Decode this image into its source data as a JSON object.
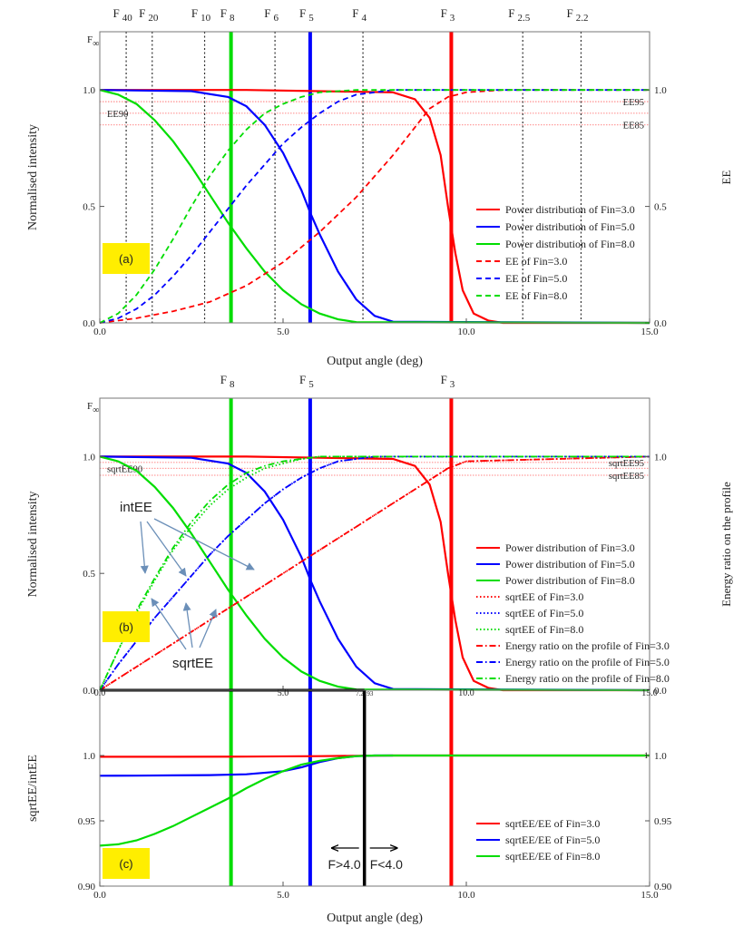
{
  "chart_data": [
    {
      "id": "a",
      "type": "line",
      "panel_label": "(a)",
      "xlabel": "Output angle (deg)",
      "ylabel": "Normalised intensity",
      "y2label": "EE",
      "xlim": [
        0,
        15
      ],
      "ylim": [
        0,
        1.25
      ],
      "xticks": [
        0,
        5,
        10,
        15
      ],
      "xtick_labels": [
        "0.0",
        "5.0",
        "10.0",
        "15.0"
      ],
      "yticks": [
        0,
        0.5,
        1.0
      ],
      "ytick_labels": [
        "0.0",
        "0.5",
        "1.0"
      ],
      "y2ticks": [
        0,
        0.5,
        1.0
      ],
      "y2tick_labels": [
        "0.0",
        "0.5",
        "1.0"
      ],
      "f_marks": [
        {
          "label": "F",
          "sub": "40",
          "x": 0.72,
          "style": "dotted"
        },
        {
          "label": "F",
          "sub": "20",
          "x": 1.43,
          "style": "dotted"
        },
        {
          "label": "F",
          "sub": "10",
          "x": 2.86,
          "style": "dotted"
        },
        {
          "label": "F",
          "sub": "8",
          "x": 3.58,
          "style": "green"
        },
        {
          "label": "F",
          "sub": "6",
          "x": 4.78,
          "style": "dotted"
        },
        {
          "label": "F",
          "sub": "5",
          "x": 5.74,
          "style": "blue"
        },
        {
          "label": "F",
          "sub": "4",
          "x": 7.18,
          "style": "dotted"
        },
        {
          "label": "F",
          "sub": "3",
          "x": 9.59,
          "style": "red"
        },
        {
          "label": "F",
          "sub": "2.5",
          "x": 11.54,
          "style": "dotted"
        },
        {
          "label": "F",
          "sub": "2.2",
          "x": 13.13,
          "style": "dotted"
        }
      ],
      "f_inf_label": "F",
      "f_inf_sub": "∞",
      "ref_lines": [
        {
          "label": "EE95",
          "y": 0.95,
          "side": "right"
        },
        {
          "label": "EE90",
          "y": 0.9,
          "side": "left"
        },
        {
          "label": "EE85",
          "y": 0.85,
          "side": "right"
        }
      ],
      "series": [
        {
          "name": "Power distribution of Fin=3.0",
          "color": "#ff0000",
          "dash": "solid",
          "x": [
            0,
            4,
            8,
            8.6,
            9.0,
            9.3,
            9.5,
            9.7,
            9.9,
            10.2,
            10.6,
            11,
            15
          ],
          "y": [
            1.0,
            1.0,
            0.99,
            0.96,
            0.88,
            0.72,
            0.5,
            0.3,
            0.14,
            0.04,
            0.01,
            0,
            0
          ]
        },
        {
          "name": "Power distribution of Fin=5.0",
          "color": "#0000ff",
          "dash": "solid",
          "x": [
            0,
            2.5,
            3.5,
            4.0,
            4.5,
            5.0,
            5.5,
            5.75,
            6.0,
            6.5,
            7.0,
            7.5,
            8.0,
            15
          ],
          "y": [
            1.0,
            0.995,
            0.97,
            0.93,
            0.85,
            0.73,
            0.57,
            0.47,
            0.38,
            0.22,
            0.1,
            0.03,
            0.005,
            0
          ]
        },
        {
          "name": "Power distribution of Fin=8.0",
          "color": "#00dd00",
          "dash": "solid",
          "x": [
            0,
            0.5,
            1.0,
            1.5,
            2.0,
            2.5,
            3.0,
            3.5,
            4.0,
            4.5,
            5.0,
            5.5,
            6.0,
            6.5,
            7.0,
            15
          ],
          "y": [
            1.0,
            0.98,
            0.94,
            0.87,
            0.78,
            0.67,
            0.55,
            0.43,
            0.32,
            0.22,
            0.14,
            0.08,
            0.04,
            0.015,
            0.003,
            0
          ]
        },
        {
          "name": "EE of Fin=3.0",
          "color": "#ff0000",
          "dash": "dashed",
          "x": [
            0,
            1,
            2,
            3,
            4,
            5,
            6,
            7,
            8,
            9,
            9.5,
            10,
            11,
            15
          ],
          "y": [
            0,
            0.02,
            0.05,
            0.09,
            0.16,
            0.26,
            0.39,
            0.54,
            0.72,
            0.92,
            0.97,
            0.99,
            1.0,
            1.0
          ]
        },
        {
          "name": "EE of Fin=5.0",
          "color": "#0000ff",
          "dash": "dashed",
          "x": [
            0,
            0.5,
            1,
            1.5,
            2,
            2.5,
            3,
            3.5,
            4,
            4.5,
            5,
            5.5,
            6,
            6.5,
            7,
            7.5,
            8,
            15
          ],
          "y": [
            0,
            0.02,
            0.06,
            0.12,
            0.2,
            0.29,
            0.39,
            0.49,
            0.59,
            0.68,
            0.77,
            0.84,
            0.9,
            0.95,
            0.98,
            0.99,
            1.0,
            1.0
          ]
        },
        {
          "name": "EE of Fin=8.0",
          "color": "#00dd00",
          "dash": "dashed",
          "x": [
            0,
            0.5,
            1,
            1.5,
            2,
            2.5,
            3,
            3.5,
            4,
            4.5,
            5,
            5.5,
            6,
            7,
            15
          ],
          "y": [
            0,
            0.04,
            0.12,
            0.23,
            0.36,
            0.5,
            0.63,
            0.74,
            0.83,
            0.9,
            0.94,
            0.97,
            0.99,
            1.0,
            1.0
          ]
        }
      ],
      "legend": {
        "placement": "lower-right"
      }
    },
    {
      "id": "b",
      "type": "line",
      "panel_label": "(b)",
      "xlabel": "",
      "ylabel": "Normalised intensity",
      "y2label": "Energy ratio on the profile",
      "xlim": [
        0,
        15
      ],
      "ylim": [
        0,
        1.25
      ],
      "xticks": [
        0,
        5,
        15
      ],
      "xtick_labels": [
        "0.0",
        "5.0",
        "15.0"
      ],
      "yticks": [
        0,
        0.5,
        1.0
      ],
      "ytick_labels": [
        "0.0",
        "0.5",
        "1.0"
      ],
      "y2ticks": [
        0,
        1.0
      ],
      "y2tick_labels": [
        "0.0",
        "1.0"
      ],
      "f_marks": [
        {
          "label": "F",
          "sub": "8",
          "x": 3.58,
          "style": "green"
        },
        {
          "label": "F",
          "sub": "5",
          "x": 5.74,
          "style": "blue"
        },
        {
          "label": "F",
          "sub": "3",
          "x": 9.59,
          "style": "red"
        }
      ],
      "f_inf_label": "F",
      "f_inf_sub": "∞",
      "ref_lines": [
        {
          "label": "sqrtEE95",
          "y": 0.975,
          "side": "right"
        },
        {
          "label": "sqrtEE90",
          "y": 0.95,
          "side": "left"
        },
        {
          "label": "sqrtEE85",
          "y": 0.92,
          "side": "right"
        }
      ],
      "annotations": [
        "intEE",
        "sqrtEE"
      ],
      "series": [
        {
          "name": "Power distribution of Fin=3.0",
          "color": "#ff0000",
          "dash": "solid",
          "x": [
            0,
            4,
            8,
            8.6,
            9.0,
            9.3,
            9.5,
            9.7,
            9.9,
            10.2,
            10.6,
            11,
            15
          ],
          "y": [
            1.0,
            1.0,
            0.99,
            0.96,
            0.88,
            0.72,
            0.5,
            0.3,
            0.14,
            0.04,
            0.01,
            0,
            0
          ]
        },
        {
          "name": "Power distribution of Fin=5.0",
          "color": "#0000ff",
          "dash": "solid",
          "x": [
            0,
            2.5,
            3.5,
            4.0,
            4.5,
            5.0,
            5.5,
            5.75,
            6.0,
            6.5,
            7.0,
            7.5,
            8.0,
            15
          ],
          "y": [
            1.0,
            0.995,
            0.97,
            0.93,
            0.85,
            0.73,
            0.57,
            0.47,
            0.38,
            0.22,
            0.1,
            0.03,
            0.005,
            0
          ]
        },
        {
          "name": "Power distribution of Fin=8.0",
          "color": "#00dd00",
          "dash": "solid",
          "x": [
            0,
            0.5,
            1.0,
            1.5,
            2.0,
            2.5,
            3.0,
            3.5,
            4.0,
            4.5,
            5.0,
            5.5,
            6.0,
            6.5,
            7.0,
            15
          ],
          "y": [
            1.0,
            0.98,
            0.94,
            0.87,
            0.78,
            0.67,
            0.55,
            0.43,
            0.32,
            0.22,
            0.14,
            0.08,
            0.04,
            0.015,
            0.003,
            0
          ]
        },
        {
          "name": "sqrtEE of Fin=3.0",
          "color": "#ff0000",
          "dash": "dotted",
          "x": [
            0,
            1,
            2,
            3,
            4,
            5,
            6,
            7,
            8,
            9,
            9.5,
            10,
            15
          ],
          "y": [
            0,
            0.1,
            0.2,
            0.3,
            0.4,
            0.5,
            0.6,
            0.7,
            0.8,
            0.9,
            0.95,
            0.98,
            1.0
          ]
        },
        {
          "name": "sqrtEE of Fin=5.0",
          "color": "#0000ff",
          "dash": "dotted",
          "x": [
            0,
            0.5,
            1,
            1.5,
            2,
            2.5,
            3,
            3.5,
            4,
            4.5,
            5,
            5.5,
            6,
            6.5,
            7,
            7.5,
            15
          ],
          "y": [
            0,
            0.11,
            0.21,
            0.31,
            0.4,
            0.49,
            0.58,
            0.66,
            0.73,
            0.8,
            0.86,
            0.91,
            0.95,
            0.98,
            0.99,
            1.0,
            1.0
          ]
        },
        {
          "name": "sqrtEE of Fin=8.0",
          "color": "#00dd00",
          "dash": "dotted",
          "x": [
            0,
            0.5,
            1,
            1.5,
            2,
            2.5,
            3,
            3.5,
            4,
            4.5,
            5,
            5.5,
            6,
            15
          ],
          "y": [
            0,
            0.17,
            0.33,
            0.47,
            0.6,
            0.7,
            0.79,
            0.86,
            0.91,
            0.95,
            0.97,
            0.99,
            1.0,
            1.0
          ]
        },
        {
          "name": "Energy ratio on the profile of Fin=3.0",
          "color": "#ff0000",
          "dash": "dashdot",
          "x": [
            0,
            1,
            2,
            3,
            4,
            5,
            6,
            7,
            8,
            9,
            9.5,
            10,
            15
          ],
          "y": [
            0,
            0.1,
            0.2,
            0.3,
            0.4,
            0.5,
            0.6,
            0.7,
            0.8,
            0.9,
            0.95,
            0.98,
            1.0
          ]
        },
        {
          "name": "Energy ratio on the profile of Fin=5.0",
          "color": "#0000ff",
          "dash": "dashdot",
          "x": [
            0,
            0.5,
            1,
            1.5,
            2,
            2.5,
            3,
            3.5,
            4,
            4.5,
            5,
            5.5,
            6,
            6.5,
            7,
            7.5,
            15
          ],
          "y": [
            0,
            0.11,
            0.21,
            0.31,
            0.4,
            0.49,
            0.58,
            0.66,
            0.73,
            0.8,
            0.86,
            0.91,
            0.95,
            0.98,
            0.99,
            1.0,
            1.0
          ]
        },
        {
          "name": "Energy ratio on the profile of Fin=8.0",
          "color": "#00dd00",
          "dash": "dashdot",
          "x": [
            0,
            0.5,
            1,
            1.5,
            2,
            2.5,
            3,
            3.5,
            4,
            4.5,
            5,
            5.5,
            6,
            15
          ],
          "y": [
            0,
            0.17,
            0.34,
            0.48,
            0.61,
            0.72,
            0.81,
            0.88,
            0.93,
            0.96,
            0.98,
            0.99,
            1.0,
            1.0
          ]
        }
      ],
      "legend": {
        "placement": "lower-right"
      }
    },
    {
      "id": "c",
      "type": "line",
      "panel_label": "(c)",
      "xlabel": "Output angle (deg)",
      "ylabel": "sqrtEE/intEE",
      "xlim": [
        0,
        15
      ],
      "ylim": [
        0.9,
        1.05
      ],
      "xticks": [
        0,
        5,
        10,
        15
      ],
      "xtick_labels": [
        "0.0",
        "5.0",
        "10.0",
        "15.0"
      ],
      "yticks": [
        0.9,
        0.95,
        1.0
      ],
      "ytick_labels": [
        "0.90",
        "0.95",
        "1.0"
      ],
      "y2ticks": [
        0.9,
        0.95,
        1.0
      ],
      "y2tick_labels": [
        "0.90",
        "0.95",
        "1.0"
      ],
      "top_axis_labels": [
        {
          "text": "0.0",
          "x": 0
        },
        {
          "text": "5.0",
          "x": 5
        },
        {
          "text": "7.2193",
          "x": 7.22
        },
        {
          "text": "10.0",
          "x": 10
        },
        {
          "text": "15.0",
          "x": 15
        }
      ],
      "marker_x": 7.22,
      "f_mark_x": {
        "green": 3.58,
        "blue": 5.74,
        "red": 9.59
      },
      "arrow_labels": {
        "left": "F>4.0",
        "right": "F<4.0"
      },
      "end_label": "1",
      "series": [
        {
          "name": "sqrtEE/EE of Fin=3.0",
          "color": "#ff0000",
          "dash": "solid",
          "x": [
            0,
            2,
            4,
            6,
            7,
            8,
            10,
            15
          ],
          "y": [
            0.999,
            0.999,
            0.9992,
            0.9995,
            0.9998,
            1.0,
            1.0,
            1.0
          ]
        },
        {
          "name": "sqrtEE/EE of Fin=5.0",
          "color": "#0000ff",
          "dash": "solid",
          "x": [
            0,
            1,
            2,
            3,
            4,
            5,
            5.5,
            6,
            6.5,
            7,
            7.5,
            8
          ],
          "y": [
            0.9845,
            0.9846,
            0.9848,
            0.985,
            0.9856,
            0.988,
            0.991,
            0.995,
            0.998,
            0.9995,
            1.0,
            1.0
          ]
        },
        {
          "name": "sqrtEE/EE of Fin=8.0",
          "color": "#00dd00",
          "dash": "solid",
          "x": [
            0,
            0.5,
            1,
            1.5,
            2,
            2.5,
            3,
            3.5,
            4,
            4.5,
            5,
            5.5,
            6,
            6.5,
            7,
            7.5,
            8,
            15
          ],
          "y": [
            0.931,
            0.932,
            0.935,
            0.94,
            0.946,
            0.953,
            0.96,
            0.967,
            0.975,
            0.982,
            0.988,
            0.993,
            0.996,
            0.998,
            0.9995,
            1.0,
            1.0,
            1.0
          ]
        }
      ],
      "legend": {
        "placement": "lower-right"
      }
    }
  ]
}
